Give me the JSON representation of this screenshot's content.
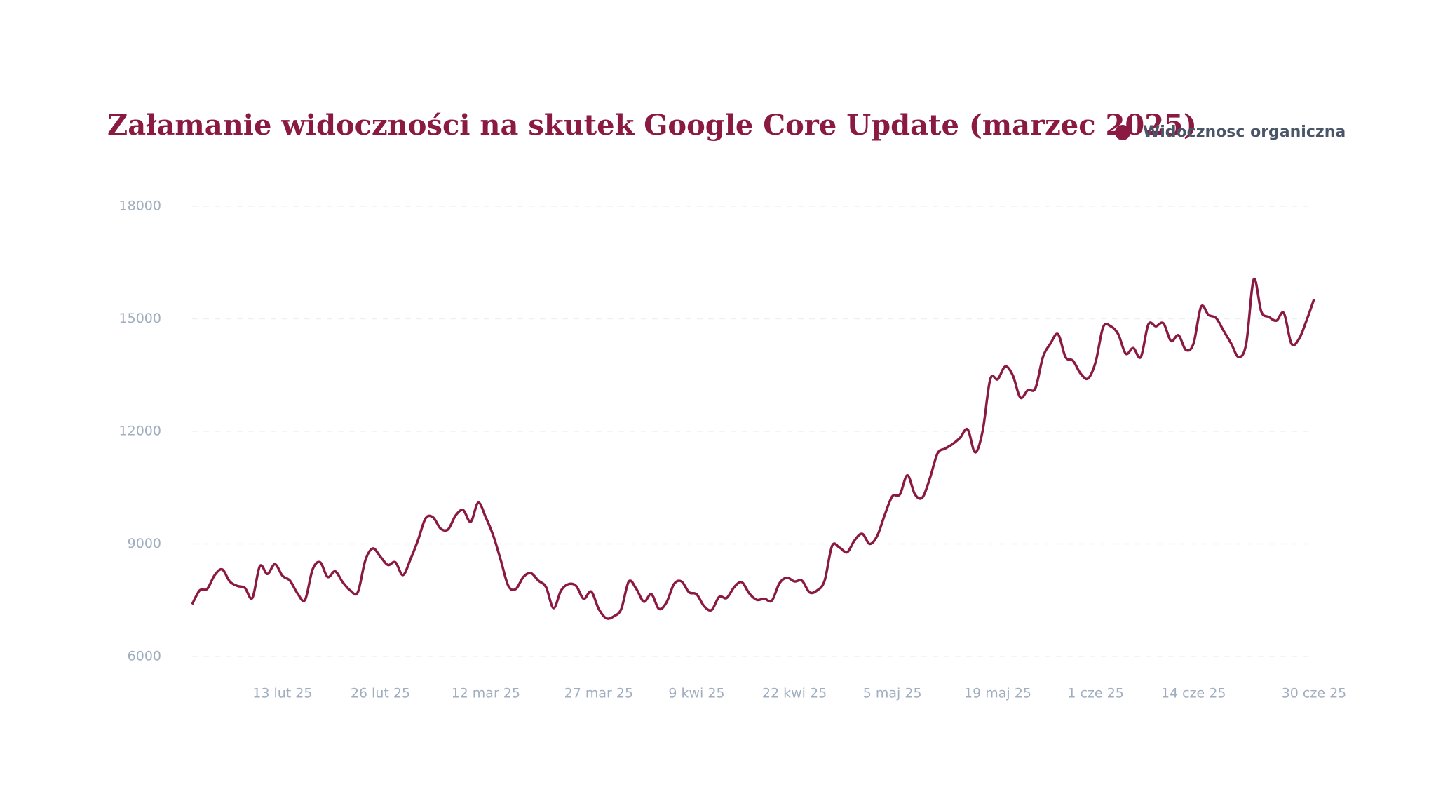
{
  "chart_data": {
    "type": "line",
    "title": "Załamanie widoczności na skutek Google Core Update (marzec 2025)",
    "x": [
      "2025-02-01",
      "2025-02-02",
      "2025-02-03",
      "2025-02-04",
      "2025-02-05",
      "2025-02-06",
      "2025-02-07",
      "2025-02-08",
      "2025-02-09",
      "2025-02-10",
      "2025-02-11",
      "2025-02-12",
      "2025-02-13",
      "2025-02-14",
      "2025-02-15",
      "2025-02-16",
      "2025-02-17",
      "2025-02-18",
      "2025-02-19",
      "2025-02-20",
      "2025-02-21",
      "2025-02-22",
      "2025-02-23",
      "2025-02-24",
      "2025-02-25",
      "2025-02-26",
      "2025-02-27",
      "2025-02-28",
      "2025-03-01",
      "2025-03-02",
      "2025-03-03",
      "2025-03-04",
      "2025-03-05",
      "2025-03-06",
      "2025-03-07",
      "2025-03-08",
      "2025-03-09",
      "2025-03-10",
      "2025-03-11",
      "2025-03-12",
      "2025-03-13",
      "2025-03-14",
      "2025-03-15",
      "2025-03-16",
      "2025-03-17",
      "2025-03-18",
      "2025-03-19",
      "2025-03-20",
      "2025-03-21",
      "2025-03-22",
      "2025-03-23",
      "2025-03-24",
      "2025-03-25",
      "2025-03-26",
      "2025-03-27",
      "2025-03-28",
      "2025-03-29",
      "2025-03-30",
      "2025-03-31",
      "2025-04-01",
      "2025-04-02",
      "2025-04-03",
      "2025-04-04",
      "2025-04-05",
      "2025-04-06",
      "2025-04-07",
      "2025-04-08",
      "2025-04-09",
      "2025-04-10",
      "2025-04-11",
      "2025-04-12",
      "2025-04-13",
      "2025-04-14",
      "2025-04-15",
      "2025-04-16",
      "2025-04-17",
      "2025-04-18",
      "2025-04-19",
      "2025-04-20",
      "2025-04-21",
      "2025-04-22",
      "2025-04-23",
      "2025-04-24",
      "2025-04-25",
      "2025-04-26",
      "2025-04-27",
      "2025-04-28",
      "2025-04-29",
      "2025-04-30",
      "2025-05-01",
      "2025-05-02",
      "2025-05-03",
      "2025-05-04",
      "2025-05-05",
      "2025-05-06",
      "2025-05-07",
      "2025-05-08",
      "2025-05-09",
      "2025-05-10",
      "2025-05-11",
      "2025-05-12",
      "2025-05-13",
      "2025-05-14",
      "2025-05-15",
      "2025-05-16",
      "2025-05-17",
      "2025-05-18",
      "2025-05-19",
      "2025-05-20",
      "2025-05-21",
      "2025-05-22",
      "2025-05-23",
      "2025-05-24",
      "2025-05-25",
      "2025-05-26",
      "2025-05-27",
      "2025-05-28",
      "2025-05-29",
      "2025-05-30",
      "2025-05-31",
      "2025-06-01",
      "2025-06-02",
      "2025-06-03",
      "2025-06-04",
      "2025-06-05",
      "2025-06-06",
      "2025-06-07",
      "2025-06-08",
      "2025-06-09",
      "2025-06-10",
      "2025-06-11",
      "2025-06-12",
      "2025-06-13",
      "2025-06-14",
      "2025-06-15",
      "2025-06-16",
      "2025-06-17",
      "2025-06-18",
      "2025-06-19",
      "2025-06-20",
      "2025-06-21",
      "2025-06-22",
      "2025-06-23",
      "2025-06-24",
      "2025-06-25",
      "2025-06-26",
      "2025-06-27",
      "2025-06-28",
      "2025-06-29",
      "2025-06-30"
    ],
    "series": [
      {
        "name": "Widocznosc organiczna",
        "color": "#8b1a42",
        "values": [
          7390,
          7760,
          7800,
          8170,
          8320,
          8000,
          7880,
          7830,
          7560,
          8410,
          8200,
          8460,
          8150,
          8020,
          7680,
          7510,
          8320,
          8510,
          8120,
          8270,
          7980,
          7760,
          7710,
          8560,
          8880,
          8660,
          8440,
          8510,
          8170,
          8590,
          9100,
          9680,
          9710,
          9410,
          9390,
          9760,
          9900,
          9590,
          10100,
          9710,
          9220,
          8560,
          7880,
          7800,
          8120,
          8220,
          8020,
          7850,
          7290,
          7760,
          7930,
          7880,
          7540,
          7730,
          7270,
          7020,
          7070,
          7270,
          8000,
          7800,
          7460,
          7660,
          7270,
          7440,
          7930,
          8000,
          7710,
          7660,
          7340,
          7240,
          7590,
          7560,
          7850,
          7980,
          7680,
          7510,
          7540,
          7490,
          7950,
          8100,
          8000,
          8020,
          7710,
          7760,
          8020,
          8950,
          8900,
          8780,
          9100,
          9270,
          9000,
          9220,
          9780,
          10270,
          10320,
          10830,
          10320,
          10240,
          10760,
          11410,
          11540,
          11660,
          11830,
          12050,
          11440,
          12020,
          13390,
          13390,
          13730,
          13490,
          12900,
          13100,
          13150,
          13980,
          14340,
          14590,
          13980,
          13880,
          13540,
          13410,
          13850,
          14780,
          14800,
          14590,
          14070,
          14220,
          13980,
          14850,
          14800,
          14880,
          14410,
          14560,
          14170,
          14340,
          15320,
          15100,
          15020,
          14680,
          14340,
          13980,
          14340,
          16050,
          15190,
          15050,
          14950,
          15150,
          14340,
          14460,
          14950,
          15520
        ]
      }
    ],
    "ylim": [
      6000,
      18000
    ],
    "yticks": [
      6000,
      9000,
      12000,
      15000,
      18000
    ],
    "xticks": [
      {
        "value": "2025-02-13",
        "label": "13 lut 25"
      },
      {
        "value": "2025-02-26",
        "label": "26 lut 25"
      },
      {
        "value": "2025-03-12",
        "label": "12 mar 25"
      },
      {
        "value": "2025-03-27",
        "label": "27 mar 25"
      },
      {
        "value": "2025-04-09",
        "label": "9 kwi 25"
      },
      {
        "value": "2025-04-22",
        "label": "22 kwi 25"
      },
      {
        "value": "2025-05-05",
        "label": "5 maj 25"
      },
      {
        "value": "2025-05-19",
        "label": "19 maj 25"
      },
      {
        "value": "2025-06-01",
        "label": "1 cze 25"
      },
      {
        "value": "2025-06-14",
        "label": "14 cze 25"
      },
      {
        "value": "2025-06-30",
        "label": "30 cze 25"
      }
    ],
    "grid": true,
    "legend": "top-right"
  }
}
